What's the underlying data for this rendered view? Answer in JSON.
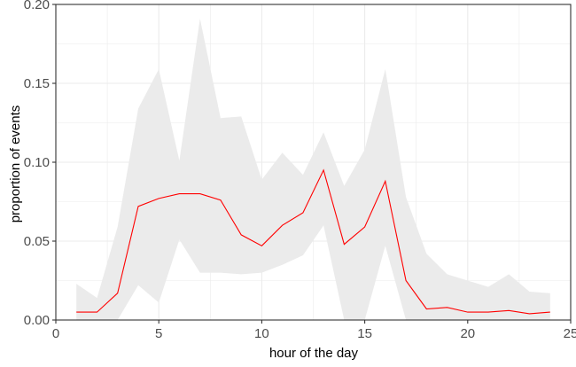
{
  "chart_data": {
    "type": "line",
    "xlabel": "hour of the day",
    "ylabel": "proportion of events",
    "xlim": [
      0,
      25
    ],
    "ylim": [
      0,
      0.2
    ],
    "x_ticks": [
      0,
      5,
      10,
      15,
      20,
      25
    ],
    "y_ticks": [
      0,
      0.05,
      0.1,
      0.15,
      0.2
    ],
    "x_tick_labels": [
      "0",
      "5",
      "10",
      "15",
      "20",
      "25"
    ],
    "y_tick_labels": [
      "0.00",
      "0.05",
      "0.10",
      "0.15",
      "0.20"
    ],
    "grid": true,
    "x": [
      1,
      2,
      3,
      4,
      5,
      6,
      7,
      8,
      9,
      10,
      11,
      12,
      13,
      14,
      15,
      16,
      17,
      18,
      19,
      20,
      21,
      22,
      23,
      24
    ],
    "series": [
      {
        "values": [
          0.005,
          0.005,
          0.017,
          0.072,
          0.077,
          0.08,
          0.08,
          0.076,
          0.054,
          0.047,
          0.06,
          0.068,
          0.095,
          0.048,
          0.059,
          0.088,
          0.025,
          0.007,
          0.008,
          0.005,
          0.005,
          0.006,
          0.004,
          0.005
        ],
        "color": "#ff0000"
      }
    ],
    "band": {
      "lower": [
        0.0,
        0.0,
        0.0,
        0.022,
        0.011,
        0.051,
        0.03,
        0.03,
        0.029,
        0.03,
        0.035,
        0.041,
        0.06,
        0.0,
        0.0,
        0.047,
        0.0,
        0.0,
        0.0,
        0.0,
        0.0,
        0.0,
        0.0,
        0.0
      ],
      "upper": [
        0.023,
        0.014,
        0.059,
        0.134,
        0.159,
        0.101,
        0.191,
        0.128,
        0.129,
        0.089,
        0.106,
        0.092,
        0.119,
        0.085,
        0.108,
        0.159,
        0.078,
        0.042,
        0.029,
        0.025,
        0.021,
        0.029,
        0.018,
        0.017
      ],
      "color": "#ebebeb"
    },
    "colors": {
      "background": "#ffffff",
      "grid": "#ebebeb",
      "panel_border": "#333333",
      "tick_label": "#4d4d4d"
    }
  }
}
